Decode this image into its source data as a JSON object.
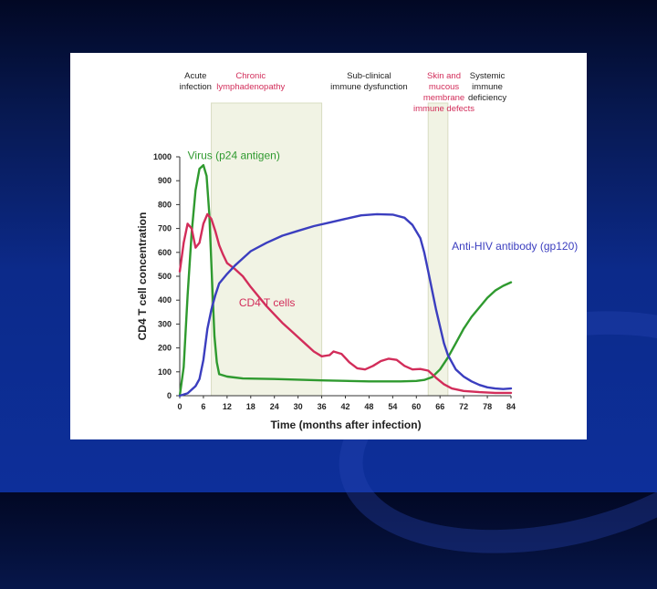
{
  "chart_data": {
    "type": "line",
    "title": "",
    "xlabel": "Time (months after infection)",
    "ylabel": "CD4 T cell concentration",
    "xlim": [
      0,
      84
    ],
    "ylim": [
      0,
      1000
    ],
    "x_ticks": [
      0,
      6,
      12,
      18,
      24,
      30,
      36,
      42,
      48,
      54,
      60,
      66,
      72,
      78,
      84
    ],
    "y_ticks": [
      0,
      100,
      200,
      300,
      400,
      500,
      600,
      700,
      800,
      900,
      1000
    ],
    "phases": [
      {
        "lines": [
          "Acute",
          "infection"
        ],
        "x_center": 4,
        "color": "#222222",
        "band": null
      },
      {
        "lines": [
          "Chronic",
          "lymphadenopathy"
        ],
        "x_center": 18,
        "color": "#d22d5a",
        "band": [
          8,
          36
        ]
      },
      {
        "lines": [
          "Sub-clinical",
          "immune dysfunction"
        ],
        "x_center": 48,
        "color": "#222222",
        "band": null
      },
      {
        "lines": [
          "Skin and",
          "mucous",
          "membrane",
          "immune defects"
        ],
        "x_center": 67,
        "color": "#d22d5a",
        "band": [
          63,
          68
        ]
      },
      {
        "lines": [
          "Systemic",
          "immune",
          "deficiency"
        ],
        "x_center": 78,
        "color": "#222222",
        "band": null
      }
    ],
    "series": [
      {
        "name": "Virus (p24 antigen)",
        "color": "#2f9a2f",
        "label_at": [
          2,
          990
        ],
        "points": [
          [
            0,
            0
          ],
          [
            1,
            120
          ],
          [
            2,
            420
          ],
          [
            3,
            680
          ],
          [
            4,
            860
          ],
          [
            5,
            950
          ],
          [
            6,
            965
          ],
          [
            6.8,
            920
          ],
          [
            7.5,
            760
          ],
          [
            8.2,
            480
          ],
          [
            8.8,
            250
          ],
          [
            9.4,
            140
          ],
          [
            10,
            90
          ],
          [
            12,
            80
          ],
          [
            16,
            72
          ],
          [
            24,
            70
          ],
          [
            36,
            64
          ],
          [
            48,
            60
          ],
          [
            56,
            60
          ],
          [
            60,
            62
          ],
          [
            62,
            66
          ],
          [
            64,
            78
          ],
          [
            66,
            110
          ],
          [
            68,
            160
          ],
          [
            70,
            220
          ],
          [
            72,
            280
          ],
          [
            74,
            330
          ],
          [
            76,
            370
          ],
          [
            78,
            410
          ],
          [
            80,
            440
          ],
          [
            82,
            460
          ],
          [
            84,
            475
          ]
        ]
      },
      {
        "name": "CD4 T cells",
        "color": "#d22d5a",
        "label_at": [
          15,
          375
        ],
        "points": [
          [
            0,
            520
          ],
          [
            1,
            640
          ],
          [
            2,
            720
          ],
          [
            3,
            700
          ],
          [
            4,
            620
          ],
          [
            5,
            640
          ],
          [
            6,
            720
          ],
          [
            7,
            760
          ],
          [
            8,
            740
          ],
          [
            9,
            690
          ],
          [
            10,
            630
          ],
          [
            11,
            590
          ],
          [
            12,
            555
          ],
          [
            14,
            530
          ],
          [
            16,
            500
          ],
          [
            18,
            455
          ],
          [
            20,
            415
          ],
          [
            22,
            375
          ],
          [
            24,
            340
          ],
          [
            26,
            305
          ],
          [
            28,
            275
          ],
          [
            30,
            245
          ],
          [
            32,
            215
          ],
          [
            34,
            185
          ],
          [
            36,
            165
          ],
          [
            38,
            170
          ],
          [
            39,
            185
          ],
          [
            41,
            175
          ],
          [
            43,
            140
          ],
          [
            45,
            115
          ],
          [
            47,
            110
          ],
          [
            49,
            125
          ],
          [
            51,
            145
          ],
          [
            53,
            155
          ],
          [
            55,
            150
          ],
          [
            57,
            125
          ],
          [
            59,
            110
          ],
          [
            61,
            112
          ],
          [
            63,
            105
          ],
          [
            65,
            75
          ],
          [
            67,
            48
          ],
          [
            69,
            30
          ],
          [
            72,
            20
          ],
          [
            76,
            15
          ],
          [
            80,
            12
          ],
          [
            84,
            12
          ]
        ]
      },
      {
        "name": "Anti-HIV antibody (gp120)",
        "color": "#3b3ebf",
        "label_at": [
          69,
          610
        ],
        "points": [
          [
            0,
            0
          ],
          [
            2,
            10
          ],
          [
            4,
            40
          ],
          [
            5,
            70
          ],
          [
            6,
            150
          ],
          [
            7,
            280
          ],
          [
            8,
            360
          ],
          [
            9,
            420
          ],
          [
            10,
            470
          ],
          [
            12,
            510
          ],
          [
            14,
            545
          ],
          [
            16,
            575
          ],
          [
            18,
            605
          ],
          [
            22,
            640
          ],
          [
            26,
            670
          ],
          [
            30,
            690
          ],
          [
            34,
            710
          ],
          [
            38,
            725
          ],
          [
            42,
            740
          ],
          [
            46,
            755
          ],
          [
            50,
            760
          ],
          [
            54,
            758
          ],
          [
            57,
            745
          ],
          [
            59,
            715
          ],
          [
            61,
            660
          ],
          [
            62,
            600
          ],
          [
            63,
            520
          ],
          [
            64,
            440
          ],
          [
            65,
            360
          ],
          [
            66,
            290
          ],
          [
            67,
            220
          ],
          [
            68,
            170
          ],
          [
            70,
            110
          ],
          [
            72,
            80
          ],
          [
            74,
            60
          ],
          [
            76,
            45
          ],
          [
            78,
            35
          ],
          [
            80,
            30
          ],
          [
            82,
            28
          ],
          [
            84,
            30
          ]
        ]
      }
    ]
  }
}
